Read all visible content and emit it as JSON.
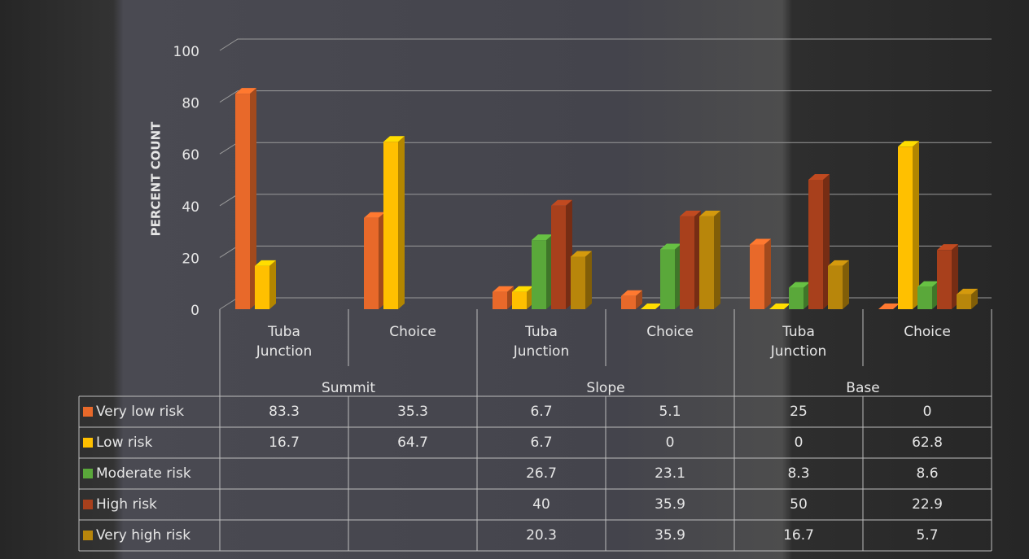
{
  "chart_data": {
    "type": "bar3d",
    "y_axis_label": "PERCENT  COUNT",
    "groups": [
      "Summit",
      "Slope",
      "Base"
    ],
    "categories": [
      "Tuba Junction",
      "Choice",
      "Tuba Junction",
      "Choice",
      "Tuba Junction",
      "Choice"
    ],
    "series": [
      {
        "name": "Very low risk",
        "color": "#e8692a",
        "values": [
          83.3,
          35.3,
          6.7,
          5.1,
          25,
          0
        ]
      },
      {
        "name": "Low risk",
        "color": "#ffc000",
        "values": [
          16.7,
          64.7,
          6.7,
          0,
          0,
          62.8
        ]
      },
      {
        "name": "Moderate risk",
        "color": "#5aa83a",
        "values": [
          null,
          null,
          26.7,
          23.1,
          8.3,
          8.6
        ]
      },
      {
        "name": "High risk",
        "color": "#a8401c",
        "values": [
          null,
          null,
          40,
          35.9,
          50,
          22.9
        ]
      },
      {
        "name": "Very high risk",
        "color": "#b8860b",
        "values": [
          null,
          null,
          20.3,
          35.9,
          16.7,
          5.7
        ]
      }
    ],
    "ylim": [
      0,
      100
    ],
    "yticks": [
      0,
      20,
      40,
      60,
      80,
      100
    ],
    "grid": true
  }
}
